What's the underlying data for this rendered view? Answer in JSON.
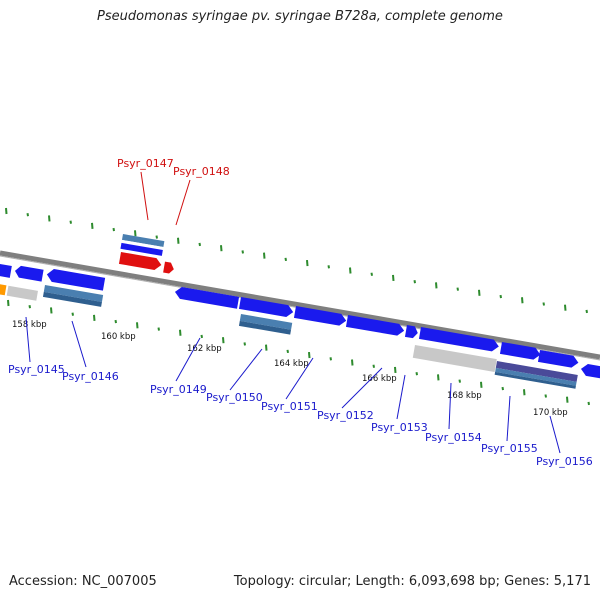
{
  "title": "Pseudomonas syringae pv. syringae B728a, complete genome",
  "footer": {
    "accession": "Accession: NC_007005",
    "summary": "Topology: circular; Length: 6,093,698 bp; Genes: 5,171"
  },
  "colors": {
    "backbone": "#7f7f7f",
    "tick": "#2e8b2e",
    "forward_gene": "#1a1aee",
    "reverse_gene": "#1a1aee",
    "highlight_gene": "#e01010",
    "highlight_label": "#d01010",
    "gene_label": "#1a1acc",
    "pseudo": "#c8c8c8",
    "steel": "#4a7fb0",
    "purple": "#4a4a99",
    "orange": "#ff9900"
  },
  "scale": {
    "labels": [
      "158 kbp",
      "160 kbp",
      "162 kbp",
      "164 kbp",
      "166 kbp",
      "168 kbp",
      "170 kbp"
    ]
  },
  "genes": [
    {
      "id": "Psyr_0145",
      "highlight": false
    },
    {
      "id": "Psyr_0146",
      "highlight": false
    },
    {
      "id": "Psyr_0147",
      "highlight": true
    },
    {
      "id": "Psyr_0148",
      "highlight": true
    },
    {
      "id": "Psyr_0149",
      "highlight": false
    },
    {
      "id": "Psyr_0150",
      "highlight": false
    },
    {
      "id": "Psyr_0151",
      "highlight": false
    },
    {
      "id": "Psyr_0152",
      "highlight": false
    },
    {
      "id": "Psyr_0153",
      "highlight": false
    },
    {
      "id": "Psyr_0154",
      "highlight": false
    },
    {
      "id": "Psyr_0155",
      "highlight": false
    },
    {
      "id": "Psyr_0156",
      "highlight": false
    }
  ]
}
